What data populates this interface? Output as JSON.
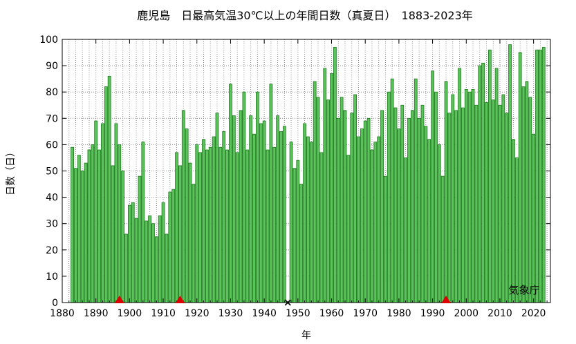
{
  "chart_data": {
    "type": "bar",
    "title": "鹿児島　日最高気温30℃以上の年間日数（真夏日）　1883-2023年",
    "xlabel": "年",
    "ylabel": "日数（日）",
    "credit": "気象庁",
    "xlim": [
      1880,
      2025
    ],
    "ylim": [
      0,
      100
    ],
    "xticks": [
      1880,
      1890,
      1900,
      1910,
      1920,
      1930,
      1940,
      1950,
      1960,
      1970,
      1980,
      1990,
      2000,
      2010,
      2020
    ],
    "yticks": [
      0,
      10,
      20,
      30,
      40,
      50,
      60,
      70,
      80,
      90,
      100
    ],
    "grid": true,
    "bar_color": "#5cc25c",
    "bar_edge_color": "#1e7a1e",
    "marker_color": "#dd0000",
    "x": [
      1883,
      1884,
      1885,
      1886,
      1887,
      1888,
      1889,
      1890,
      1891,
      1892,
      1893,
      1894,
      1895,
      1896,
      1897,
      1898,
      1899,
      1900,
      1901,
      1902,
      1903,
      1904,
      1905,
      1906,
      1907,
      1908,
      1909,
      1910,
      1911,
      1912,
      1913,
      1914,
      1915,
      1916,
      1917,
      1918,
      1919,
      1920,
      1921,
      1922,
      1923,
      1924,
      1925,
      1926,
      1927,
      1928,
      1929,
      1930,
      1931,
      1932,
      1933,
      1934,
      1935,
      1936,
      1937,
      1938,
      1939,
      1940,
      1941,
      1942,
      1943,
      1944,
      1945,
      1946,
      1947,
      1948,
      1949,
      1950,
      1951,
      1952,
      1953,
      1954,
      1955,
      1956,
      1957,
      1958,
      1959,
      1960,
      1961,
      1962,
      1963,
      1964,
      1965,
      1966,
      1967,
      1968,
      1969,
      1970,
      1971,
      1972,
      1973,
      1974,
      1975,
      1976,
      1977,
      1978,
      1979,
      1980,
      1981,
      1982,
      1983,
      1984,
      1985,
      1986,
      1987,
      1988,
      1989,
      1990,
      1991,
      1992,
      1993,
      1994,
      1995,
      1996,
      1997,
      1998,
      1999,
      2000,
      2001,
      2002,
      2003,
      2004,
      2005,
      2006,
      2007,
      2008,
      2009,
      2010,
      2011,
      2012,
      2013,
      2014,
      2015,
      2016,
      2017,
      2018,
      2019,
      2020,
      2021,
      2022,
      2023
    ],
    "values": [
      59,
      51,
      56,
      50,
      53,
      58,
      60,
      69,
      58,
      68,
      82,
      86,
      52,
      68,
      60,
      50,
      26,
      37,
      38,
      32,
      48,
      61,
      31,
      33,
      30,
      25,
      33,
      38,
      26,
      42,
      43,
      57,
      52,
      73,
      66,
      53,
      45,
      60,
      57,
      62,
      58,
      59,
      63,
      72,
      59,
      65,
      58,
      83,
      71,
      57,
      73,
      80,
      58,
      71,
      64,
      80,
      68,
      69,
      58,
      83,
      59,
      71,
      65,
      67,
      null,
      61,
      51,
      54,
      45,
      68,
      63,
      61,
      84,
      78,
      57,
      89,
      77,
      87,
      97,
      70,
      78,
      73,
      56,
      72,
      79,
      63,
      66,
      69,
      70,
      58,
      61,
      63,
      73,
      48,
      80,
      85,
      74,
      66,
      75,
      55,
      70,
      73,
      85,
      70,
      75,
      67,
      62,
      88,
      80,
      60,
      48,
      84,
      72,
      79,
      73,
      89,
      74,
      81,
      80,
      81,
      75,
      90,
      91,
      76,
      96,
      77,
      89,
      75,
      79,
      72,
      98,
      62,
      55,
      95,
      82,
      84,
      78,
      64,
      96,
      96,
      97
    ],
    "markers": [
      {
        "year": 1897,
        "symbol": "triangle"
      },
      {
        "year": 1915,
        "symbol": "triangle"
      },
      {
        "year": 1947,
        "symbol": "cross"
      },
      {
        "year": 1994,
        "symbol": "triangle"
      }
    ]
  }
}
